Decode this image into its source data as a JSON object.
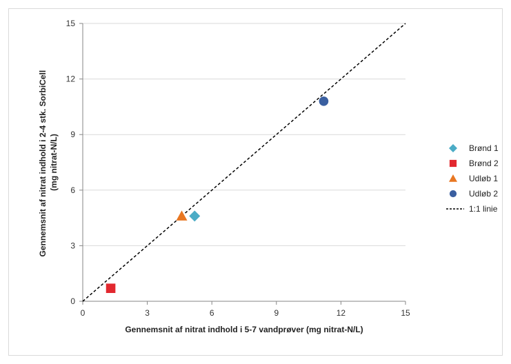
{
  "chart_data": {
    "type": "scatter",
    "title": "",
    "xlabel": "Gennemsnit af nitrat indhold i 5-7 vandprøver (mg nitrat-N/L)",
    "ylabel_lines": [
      "Gennemsnit af nitrat indhold i 2-4 stk. SorbiCell",
      "(mg nitrat-N/L)"
    ],
    "xlim": [
      0,
      15
    ],
    "ylim": [
      0,
      15
    ],
    "xticks": [
      0,
      3,
      6,
      9,
      12,
      15
    ],
    "yticks": [
      0,
      3,
      6,
      9,
      12,
      15
    ],
    "grid": "horizontal",
    "legend_position": "right",
    "series": [
      {
        "name": "Brønd 1",
        "marker": "diamond",
        "color": "#4bacc6",
        "points": [
          [
            5.2,
            4.6
          ]
        ]
      },
      {
        "name": "Brønd 2",
        "marker": "square",
        "color": "#e2282f",
        "points": [
          [
            1.3,
            0.7
          ]
        ]
      },
      {
        "name": "Udløb 1",
        "marker": "triangle",
        "color": "#e87722",
        "points": [
          [
            4.6,
            4.6
          ]
        ]
      },
      {
        "name": "Udløb 2",
        "marker": "circle",
        "color": "#3a5fa0",
        "points": [
          [
            11.2,
            10.8
          ]
        ]
      }
    ],
    "reference_line": {
      "name": "1:1 linie",
      "style": "dashed",
      "color": "#000000",
      "from": [
        0,
        0
      ],
      "to": [
        15,
        15
      ]
    }
  }
}
